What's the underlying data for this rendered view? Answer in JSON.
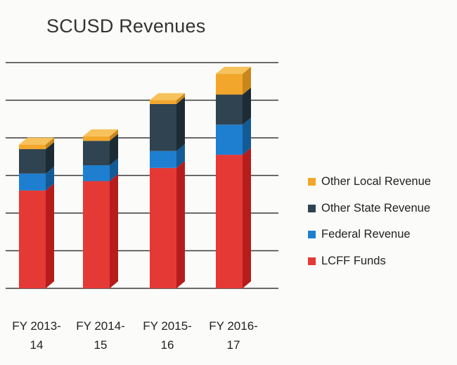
{
  "chart_data": {
    "type": "bar",
    "stacked": true,
    "style": "3d",
    "title": "SCUSD Revenues",
    "categories": [
      [
        "FY 2013-",
        "14"
      ],
      [
        "FY 2014-",
        "15"
      ],
      [
        "FY 2015-",
        "16"
      ],
      [
        "FY 2016-",
        "17"
      ]
    ],
    "ylim": [
      0,
      6
    ],
    "gridlines": [
      0,
      1,
      2,
      3,
      4,
      5,
      6
    ],
    "series": [
      {
        "name": "LCFF Funds",
        "color": "#e53935",
        "side": "#b71c1c",
        "top": "#ef5350",
        "values": [
          2.6,
          2.85,
          3.2,
          3.55
        ]
      },
      {
        "name": "Federal Revenue",
        "color": "#1e7fd0",
        "side": "#135a96",
        "top": "#42a5f5",
        "values": [
          0.45,
          0.42,
          0.45,
          0.8
        ]
      },
      {
        "name": "Other State Revenue",
        "color": "#2f4350",
        "side": "#1d2b34",
        "top": "#425a69",
        "values": [
          0.65,
          0.65,
          1.25,
          0.8
        ]
      },
      {
        "name": "Other Local Revenue",
        "color": "#f2a72c",
        "side": "#c9861b",
        "top": "#f7c25c",
        "values": [
          0.12,
          0.12,
          0.1,
          0.55
        ]
      }
    ],
    "legend_order": [
      "Other Local Revenue",
      "Other State Revenue",
      "Federal Revenue",
      "LCFF Funds"
    ],
    "legend_position": "right",
    "grid": true
  }
}
